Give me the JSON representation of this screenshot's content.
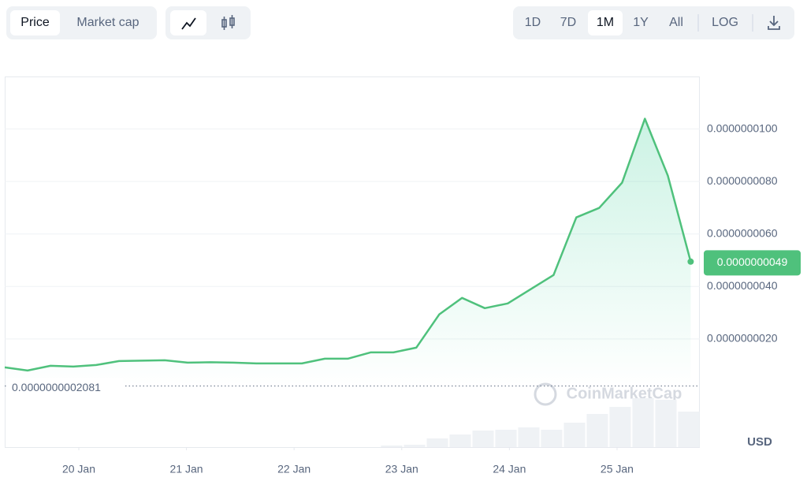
{
  "controls": {
    "metric_tabs": [
      "Price",
      "Market cap"
    ],
    "active_metric": 0,
    "range_buttons": [
      "1D",
      "7D",
      "1M",
      "1Y",
      "All"
    ],
    "active_range": 2,
    "log_button": "LOG"
  },
  "chart_data": {
    "type": "line",
    "x": [
      19.312,
      19.524,
      19.737,
      19.949,
      20.162,
      20.374,
      20.586,
      20.799,
      21.011,
      21.224,
      21.436,
      21.648,
      21.861,
      22.073,
      22.286,
      22.498,
      22.71,
      22.923,
      23.135,
      23.348,
      23.56,
      23.772,
      23.985,
      24.197,
      24.41,
      24.622,
      24.834,
      25.047,
      25.259,
      25.472,
      25.684
    ],
    "series": [
      {
        "color": "#4fc17c",
        "values": [
          9.17e-10,
          7.97e-10,
          9.77e-10,
          9.47e-10,
          1.008e-09,
          1.158e-09,
          1.174e-09,
          1.188e-09,
          1.098e-09,
          1.113e-09,
          1.098e-09,
          1.068e-09,
          1.068e-09,
          1.068e-09,
          1.248e-09,
          1.248e-09,
          1.489e-09,
          1.489e-09,
          1.669e-09,
          2.932e-09,
          3.564e-09,
          3.173e-09,
          3.353e-09,
          3.895e-09,
          4.436e-09,
          6.631e-09,
          6.992e-09,
          7.955e-09,
          1.0391e-08,
          8.225e-09,
          4.947e-09
        ]
      }
    ],
    "xlim": [
      19.312,
      25.769
    ],
    "xticks": [
      {
        "value": 20,
        "label": "20 Jan"
      },
      {
        "value": 21,
        "label": "21 Jan"
      },
      {
        "value": 22,
        "label": "22 Jan"
      },
      {
        "value": 23,
        "label": "23 Jan"
      },
      {
        "value": 24,
        "label": "24 Jan"
      },
      {
        "value": 25,
        "label": "25 Jan"
      }
    ],
    "ylim": [
      -2.12e-09,
      1.2e-08
    ],
    "yticks": [
      {
        "value": 2e-09,
        "label": "0.0000000020"
      },
      {
        "value": 4e-09,
        "label": "0.0000000040"
      },
      {
        "value": 6e-09,
        "label": "0.0000000060"
      },
      {
        "value": 8e-09,
        "label": "0.0000000080"
      },
      {
        "value": 1e-08,
        "label": "0.0000000100"
      }
    ],
    "grid": true,
    "last_price": {
      "value": 4.9e-09,
      "label": "0.0000000049"
    },
    "baseline": {
      "value": 2.081e-10,
      "label": "0.0000000002081"
    },
    "currency": "USD",
    "watermark": "CoinMarketCap",
    "volume": {
      "color": "#eff2f5",
      "x": [
        22.906,
        23.119,
        23.331,
        23.543,
        23.756,
        23.968,
        24.18,
        24.392,
        24.605,
        24.817,
        25.029,
        25.242,
        25.454,
        25.666
      ],
      "values": [
        2,
        3,
        11,
        16,
        21,
        22,
        25,
        22,
        31,
        42,
        51,
        62,
        60,
        45
      ]
    }
  }
}
